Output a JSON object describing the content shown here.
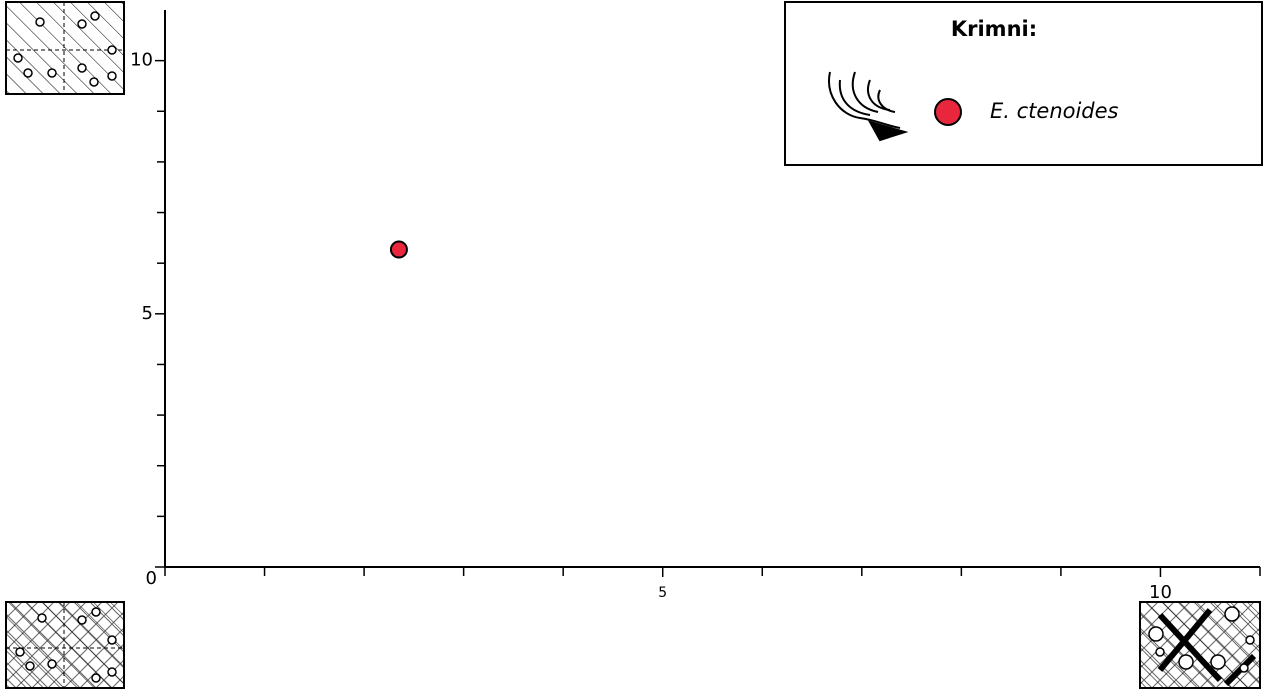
{
  "chart_data": {
    "type": "scatter",
    "series": [
      {
        "name": "E. ctenoides",
        "color": "#e8273c",
        "x": [
          2.35
        ],
        "values": [
          6.27
        ]
      }
    ],
    "legend_title": "Krimni:",
    "legend_corner": "top-right",
    "xlim": [
      0,
      11
    ],
    "ylim": [
      0,
      11
    ],
    "xticks": [
      5,
      10
    ],
    "yticks": [
      0,
      5,
      10
    ],
    "xminor_ticks": [
      0,
      1,
      2,
      3,
      4,
      6,
      7,
      8,
      9,
      11
    ],
    "yminor_ticks": [
      1,
      2,
      3,
      4,
      6,
      7,
      8,
      9
    ]
  }
}
